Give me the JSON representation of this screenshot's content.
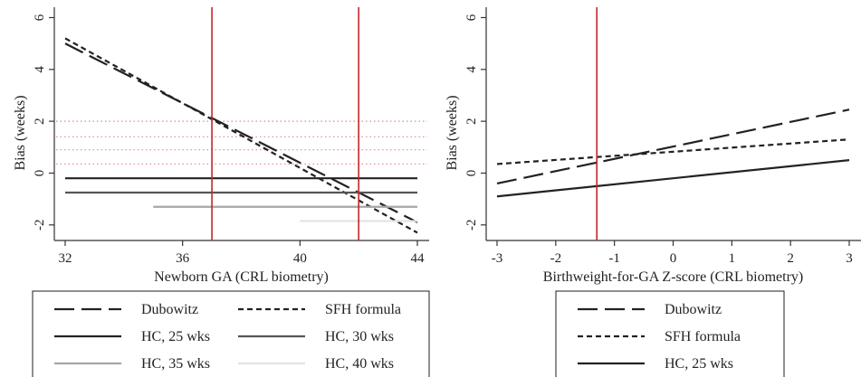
{
  "colors": {
    "axis": "#333333",
    "vline": "#c0272d",
    "dotted_ref": "#e08a8a",
    "dubowitz": "#222222",
    "sfh": "#222222",
    "hc25": "#222222",
    "hc30": "#555555",
    "hc35": "#a6a6a6",
    "hc40": "#e3e3e3"
  },
  "chart_data": [
    {
      "type": "line",
      "xlabel": "Newborn GA (CRL biometry)",
      "ylabel": "Bias (weeks)",
      "xlim": [
        32,
        44
      ],
      "ylim": [
        -2.6,
        6.4
      ],
      "x_ticks": [
        32,
        36,
        40,
        44
      ],
      "y_ticks": [
        -2,
        0,
        2,
        4,
        6
      ],
      "grid": false,
      "vertical_lines": [
        37,
        42
      ],
      "reference_dotted_lines": [
        2.0,
        1.4,
        0.9,
        0.35
      ],
      "series": [
        {
          "name": "Dubowitz",
          "dash": "long",
          "x": [
            32,
            44
          ],
          "y": [
            5.0,
            -1.9
          ]
        },
        {
          "name": "SFH formula",
          "dash": "short",
          "x": [
            32,
            44
          ],
          "y": [
            5.2,
            -2.3
          ]
        },
        {
          "name": "HC, 25 wks",
          "dash": "solid",
          "x": [
            32,
            44
          ],
          "y": [
            -0.2,
            -0.2
          ]
        },
        {
          "name": "HC, 30 wks",
          "dash": "solid",
          "x": [
            32,
            44
          ],
          "y": [
            -0.75,
            -0.75
          ]
        },
        {
          "name": "HC, 35 wks",
          "dash": "solid",
          "x": [
            35,
            44
          ],
          "y": [
            -1.3,
            -1.3
          ]
        },
        {
          "name": "HC, 40 wks",
          "dash": "solid",
          "x": [
            40,
            44
          ],
          "y": [
            -1.85,
            -1.85
          ]
        }
      ],
      "legend": {
        "placement": "below",
        "entries": [
          {
            "label": "Dubowitz",
            "dash": "long",
            "color_key": "dubowitz"
          },
          {
            "label": "SFH formula",
            "dash": "short",
            "color_key": "sfh"
          },
          {
            "label": "HC, 25 wks",
            "dash": "solid",
            "color_key": "hc25"
          },
          {
            "label": "HC, 30 wks",
            "dash": "solid",
            "color_key": "hc30"
          },
          {
            "label": "HC, 35 wks",
            "dash": "solid",
            "color_key": "hc35"
          },
          {
            "label": "HC, 40 wks",
            "dash": "solid",
            "color_key": "hc40"
          }
        ]
      }
    },
    {
      "type": "line",
      "xlabel": "Birthweight-for-GA Z-score (CRL biometry)",
      "ylabel": "Bias (weeks)",
      "xlim": [
        -3,
        3
      ],
      "ylim": [
        -2.6,
        6.4
      ],
      "x_ticks": [
        -3,
        -2,
        -1,
        0,
        1,
        2,
        3
      ],
      "y_ticks": [
        -2,
        0,
        2,
        4,
        6
      ],
      "grid": false,
      "vertical_lines": [
        -1.3
      ],
      "reference_dotted_lines": [],
      "series": [
        {
          "name": "Dubowitz",
          "dash": "long",
          "x": [
            -3,
            3
          ],
          "y": [
            -0.4,
            2.45
          ]
        },
        {
          "name": "SFH formula",
          "dash": "short",
          "x": [
            -3,
            3
          ],
          "y": [
            0.35,
            1.3
          ]
        },
        {
          "name": "HC, 25 wks",
          "dash": "solid",
          "x": [
            -3,
            3
          ],
          "y": [
            -0.9,
            0.5
          ]
        }
      ],
      "legend": {
        "placement": "below",
        "entries": [
          {
            "label": "Dubowitz",
            "dash": "long",
            "color_key": "dubowitz"
          },
          {
            "label": "SFH formula",
            "dash": "short",
            "color_key": "sfh"
          },
          {
            "label": "HC, 25 wks",
            "dash": "solid",
            "color_key": "hc25"
          }
        ]
      }
    }
  ]
}
